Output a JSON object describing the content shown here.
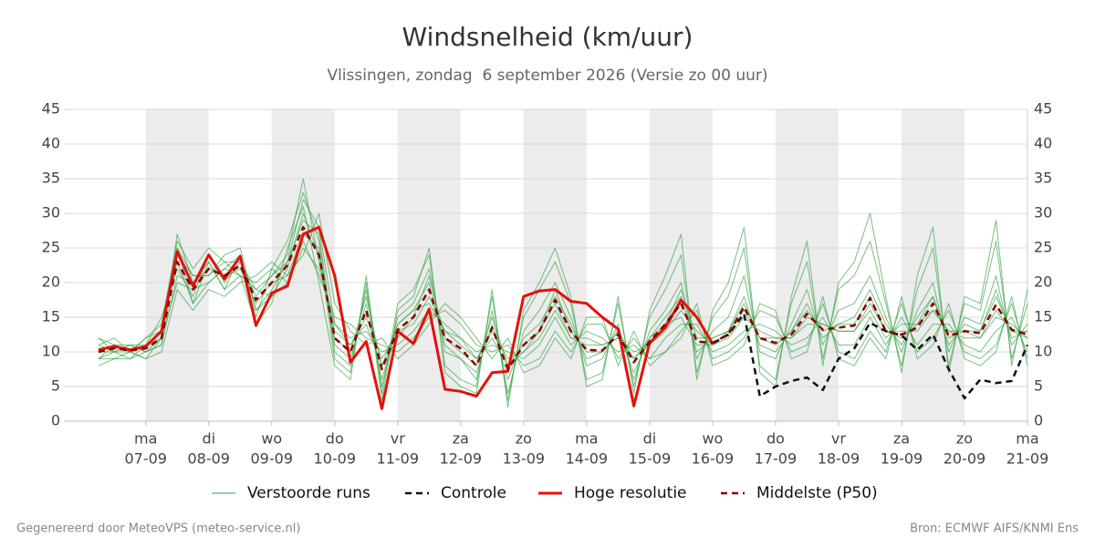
{
  "chart_data": {
    "type": "line",
    "title": "Windsnelheid (km/uur)",
    "subtitle": "Vlissingen, zondag  6 september 2026 (Versie zo 00 uur)",
    "footer_left": "Gegenereerd door MeteoVPS (meteo-service.nl)",
    "footer_right": "Bron: ECMWF AIFS/KNMI Ens",
    "x": [
      6.25,
      6.5,
      6.75,
      7,
      7.25,
      7.5,
      7.75,
      8,
      8.25,
      8.5,
      8.75,
      9,
      9.25,
      9.5,
      9.75,
      10,
      10.25,
      10.5,
      10.75,
      11,
      11.25,
      11.5,
      11.75,
      12,
      12.25,
      12.5,
      12.75,
      13,
      13.25,
      13.5,
      13.75,
      14,
      14.25,
      14.5,
      14.75,
      15,
      15.25,
      15.5,
      15.75,
      16,
      16.25,
      16.5,
      16.75,
      17,
      17.25,
      17.5,
      17.75,
      18,
      18.25,
      18.5,
      18.75,
      19,
      19.25,
      19.5,
      19.75,
      20,
      20.25,
      20.5,
      20.75,
      21
    ],
    "xlim": [
      5.7,
      21
    ],
    "xticks": [
      {
        "value": 7,
        "label": "07-09"
      },
      {
        "value": 8,
        "label": "08-09"
      },
      {
        "value": 9,
        "label": "09-09"
      },
      {
        "value": 10,
        "label": "10-09"
      },
      {
        "value": 11,
        "label": "11-09"
      },
      {
        "value": 12,
        "label": "12-09"
      },
      {
        "value": 13,
        "label": "13-09"
      },
      {
        "value": 14,
        "label": "14-09"
      },
      {
        "value": 15,
        "label": "15-09"
      },
      {
        "value": 16,
        "label": "16-09"
      },
      {
        "value": 17,
        "label": "17-09"
      },
      {
        "value": 18,
        "label": "18-09"
      },
      {
        "value": 19,
        "label": "19-09"
      },
      {
        "value": 20,
        "label": "20-09"
      },
      {
        "value": 21,
        "label": "21-09"
      }
    ],
    "xtick_days": [
      "ma",
      "di",
      "wo",
      "do",
      "vr",
      "za",
      "zo",
      "ma",
      "di",
      "wo",
      "do",
      "vr",
      "za",
      "zo",
      "ma"
    ],
    "ylim": [
      0,
      45
    ],
    "yticks": [
      0,
      5,
      10,
      15,
      20,
      25,
      30,
      35,
      40,
      45
    ],
    "grid": true,
    "series": [
      {
        "name": "Verstoorde runs",
        "color": "#2e9e3e",
        "values": [
          [
            11,
            10,
            9,
            11,
            13,
            25,
            17,
            20,
            22,
            24,
            15,
            22,
            26,
            33,
            26,
            10,
            8,
            19,
            5,
            15,
            17,
            22,
            10,
            9,
            6,
            16,
            4,
            13,
            16,
            20,
            15,
            8,
            9,
            14,
            6,
            13,
            16,
            20,
            9,
            13,
            15,
            21,
            10,
            9,
            14,
            19,
            11,
            16,
            17,
            21,
            15,
            10,
            16,
            20,
            10,
            15,
            14,
            21,
            11,
            14
          ],
          [
            9,
            10,
            11,
            10,
            11,
            21,
            20,
            23,
            19,
            21,
            19,
            18,
            20,
            25,
            22,
            14,
            12,
            13,
            10,
            11,
            13,
            16,
            14,
            12,
            10,
            11,
            10,
            9,
            11,
            15,
            11,
            13,
            12,
            10,
            11,
            9,
            12,
            14,
            14,
            10,
            11,
            13,
            14,
            13,
            11,
            12,
            15,
            11,
            11,
            15,
            11,
            15,
            11,
            14,
            14,
            11,
            10,
            13,
            15,
            10
          ],
          [
            12,
            11,
            10,
            12,
            14,
            26,
            22,
            25,
            23,
            21,
            14,
            17,
            25,
            31,
            20,
            8,
            6,
            21,
            4,
            17,
            19,
            24,
            8,
            6,
            5,
            18,
            3,
            15,
            19,
            23,
            17,
            6,
            7,
            17,
            5,
            15,
            19,
            24,
            7,
            15,
            18,
            25,
            8,
            6,
            17,
            23,
            9,
            19,
            21,
            26,
            17,
            8,
            19,
            25,
            8,
            17,
            16,
            26,
            9,
            17
          ],
          [
            8,
            9,
            10,
            9,
            10,
            19,
            16,
            19,
            18,
            20,
            21,
            23,
            21,
            24,
            30,
            17,
            13,
            11,
            12,
            9,
            11,
            14,
            17,
            15,
            12,
            9,
            12,
            7,
            8,
            12,
            9,
            15,
            15,
            8,
            13,
            8,
            10,
            12,
            17,
            8,
            9,
            11,
            17,
            16,
            9,
            10,
            18,
            9,
            8,
            12,
            9,
            18,
            9,
            11,
            17,
            9,
            8,
            10,
            18,
            8
          ],
          [
            10,
            11,
            11,
            10,
            12,
            24,
            21,
            21,
            24,
            25,
            16,
            19,
            23,
            29,
            27,
            11,
            9,
            17,
            6,
            14,
            16,
            20,
            11,
            9,
            7,
            14,
            6,
            12,
            14,
            18,
            14,
            9,
            10,
            13,
            7,
            12,
            15,
            18,
            10,
            12,
            13,
            18,
            11,
            10,
            13,
            17,
            12,
            14,
            15,
            19,
            14,
            11,
            15,
            18,
            11,
            14,
            13,
            19,
            12,
            13
          ],
          [
            11,
            12,
            10,
            11,
            15,
            22,
            18,
            24,
            20,
            23,
            18,
            21,
            24,
            35,
            23,
            13,
            11,
            15,
            9,
            13,
            14,
            18,
            13,
            12,
            9,
            13,
            9,
            10,
            12,
            16,
            12,
            12,
            11,
            12,
            10,
            11,
            13,
            16,
            13,
            11,
            12,
            15,
            13,
            12,
            12,
            14,
            14,
            13,
            13,
            16,
            12,
            14,
            14,
            16,
            13,
            12,
            12,
            15,
            14,
            12
          ],
          [
            9,
            9,
            9,
            10,
            11,
            27,
            20,
            22,
            21,
            22,
            17,
            20,
            21,
            27,
            25,
            9,
            7,
            20,
            3,
            16,
            18,
            25,
            7,
            5,
            4,
            19,
            2,
            16,
            20,
            25,
            18,
            5,
            6,
            18,
            4,
            16,
            21,
            27,
            6,
            16,
            20,
            28,
            7,
            5,
            18,
            26,
            8,
            20,
            23,
            30,
            18,
            7,
            21,
            28,
            7,
            18,
            17,
            29,
            8,
            19
          ],
          [
            10,
            10,
            11,
            11,
            12,
            20,
            19,
            20,
            22,
            21,
            20,
            22,
            20,
            26,
            21,
            15,
            14,
            12,
            11,
            10,
            12,
            15,
            16,
            14,
            11,
            10,
            11,
            8,
            9,
            13,
            10,
            14,
            14,
            9,
            12,
            9,
            10,
            13,
            16,
            9,
            10,
            12,
            16,
            15,
            10,
            11,
            17,
            10,
            9,
            13,
            10,
            17,
            10,
            12,
            16,
            10,
            9,
            11,
            17,
            9
          ],
          [
            12,
            10,
            10,
            12,
            13,
            23,
            17,
            23,
            19,
            24,
            16,
            18,
            22,
            30,
            24,
            12,
            10,
            18,
            8,
            12,
            15,
            21,
            12,
            10,
            8,
            15,
            8,
            11,
            13,
            19,
            13,
            10,
            10,
            13,
            9,
            12,
            14,
            19,
            12,
            12,
            13,
            17,
            12,
            11,
            13,
            16,
            13,
            14,
            14,
            18,
            13,
            12,
            14,
            18,
            12,
            13,
            13,
            18,
            13,
            13
          ],
          [
            9,
            11,
            10,
            9,
            12,
            25,
            21,
            21,
            23,
            23,
            19,
            21,
            23,
            32,
            28,
            14,
            11,
            14,
            8,
            14,
            16,
            17,
            13,
            11,
            9,
            12,
            8,
            10,
            13,
            17,
            12,
            11,
            11,
            12,
            9,
            11,
            14,
            15,
            11,
            11,
            13,
            16,
            12,
            12,
            12,
            15,
            14,
            13,
            13,
            17,
            13,
            13,
            13,
            16,
            13,
            13,
            12,
            16,
            13,
            12
          ]
        ]
      },
      {
        "name": "Controle",
        "color": "#111111",
        "dashed": true,
        "values": [
          10.3,
          10.8,
          10.3,
          10.8,
          13,
          24.5,
          19.5,
          24,
          20.5,
          23.8,
          13.8,
          18.5,
          19.5,
          27,
          28,
          21,
          8.5,
          11.5,
          1.8,
          13,
          11.2,
          16.2,
          4.6,
          4.3,
          3.6,
          7,
          7.2,
          18,
          18.8,
          19,
          17.3,
          17,
          15,
          13.3,
          2.2,
          11.3,
          13.5,
          17.5,
          15,
          11.2,
          12.5,
          15.5,
          3.6,
          5,
          5.8,
          6.3,
          4.5,
          9,
          10.5,
          14.2,
          13,
          12.4,
          10.3,
          12.5,
          7.5,
          3.3,
          6,
          5.5,
          5.8,
          11
        ]
      },
      {
        "name": "Hoge resolutie",
        "color": "#e3120b",
        "values": [
          10.3,
          10.8,
          10.3,
          10.8,
          13,
          24.5,
          19.5,
          24,
          20.5,
          23.8,
          13.8,
          18.5,
          19.5,
          27,
          28,
          21,
          8.5,
          11.5,
          1.8,
          13,
          11.2,
          16.2,
          4.6,
          4.3,
          3.6,
          7,
          7.2,
          18,
          18.8,
          19,
          17.3,
          17,
          15,
          13.3,
          2.2,
          11.3,
          13.5,
          17.5,
          15,
          11.2,
          null,
          null,
          null,
          null,
          null,
          null,
          null,
          null,
          null,
          null,
          null,
          null,
          null,
          null,
          null,
          null,
          null,
          null,
          null,
          null
        ]
      },
      {
        "name": "Middelste (P50)",
        "color": "#8b0000",
        "dashed": true,
        "values": [
          10,
          10.5,
          10.2,
          10.5,
          12,
          23,
          19,
          22,
          21,
          22.5,
          17.5,
          20,
          22.5,
          28,
          24,
          12,
          10,
          16,
          7.5,
          13.2,
          15,
          19,
          12,
          10.5,
          8,
          13.5,
          7.5,
          11,
          13,
          17.5,
          13,
          10.3,
          10.2,
          12.5,
          8.5,
          11.5,
          14,
          17,
          11.5,
          11.3,
          12.5,
          16.5,
          12,
          11.3,
          12.5,
          15.5,
          13.2,
          13.5,
          13.8,
          17.8,
          13,
          12.5,
          13.5,
          17,
          12.3,
          13,
          12.7,
          16.8,
          13.2,
          12.5
        ]
      }
    ]
  }
}
